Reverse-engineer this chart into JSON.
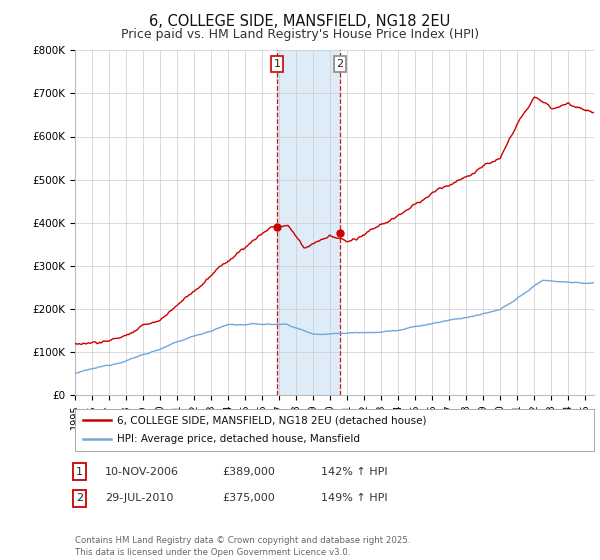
{
  "title": "6, COLLEGE SIDE, MANSFIELD, NG18 2EU",
  "subtitle": "Price paid vs. HM Land Registry's House Price Index (HPI)",
  "ylim": [
    0,
    800000
  ],
  "yticks": [
    0,
    100000,
    200000,
    300000,
    400000,
    500000,
    600000,
    700000,
    800000
  ],
  "ytick_labels": [
    "£0",
    "£100K",
    "£200K",
    "£300K",
    "£400K",
    "£500K",
    "£600K",
    "£700K",
    "£800K"
  ],
  "purchase1_date": 2006.87,
  "purchase1_price": 389000,
  "purchase2_date": 2010.58,
  "purchase2_price": 375000,
  "legend_line1": "6, COLLEGE SIDE, MANSFIELD, NG18 2EU (detached house)",
  "legend_line2": "HPI: Average price, detached house, Mansfield",
  "footer": "Contains HM Land Registry data © Crown copyright and database right 2025.\nThis data is licensed under the Open Government Licence v3.0.",
  "hpi_color": "#6fa8dc",
  "price_color": "#cc0000",
  "bg_color": "#ffffff",
  "grid_color": "#cccccc",
  "highlight_color": "#d6e8f7",
  "vline_color": "#cc0000"
}
